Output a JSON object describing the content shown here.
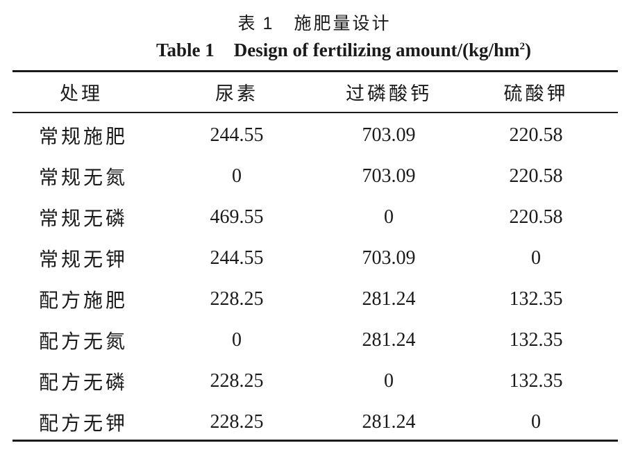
{
  "caption": {
    "cn_label": "表",
    "cn_number": "1",
    "cn_title": "施肥量设计",
    "en_label": "Table 1",
    "en_title": "Design of fertilizing amount/(kg/hm",
    "en_sup": "2",
    "en_close": ")"
  },
  "table": {
    "headers": [
      "处理",
      "尿素",
      "过磷酸钙",
      "硫酸钾"
    ],
    "rows": [
      [
        "常规施肥",
        "244.55",
        "703.09",
        "220.58"
      ],
      [
        "常规无氮",
        "0",
        "703.09",
        "220.58"
      ],
      [
        "常规无磷",
        "469.55",
        "0",
        "220.58"
      ],
      [
        "常规无钾",
        "244.55",
        "703.09",
        "0"
      ],
      [
        "配方施肥",
        "228.25",
        "281.24",
        "132.35"
      ],
      [
        "配方无氮",
        "0",
        "281.24",
        "132.35"
      ],
      [
        "配方无磷",
        "228.25",
        "0",
        "132.35"
      ],
      [
        "配方无钾",
        "228.25",
        "281.24",
        "0"
      ]
    ]
  }
}
